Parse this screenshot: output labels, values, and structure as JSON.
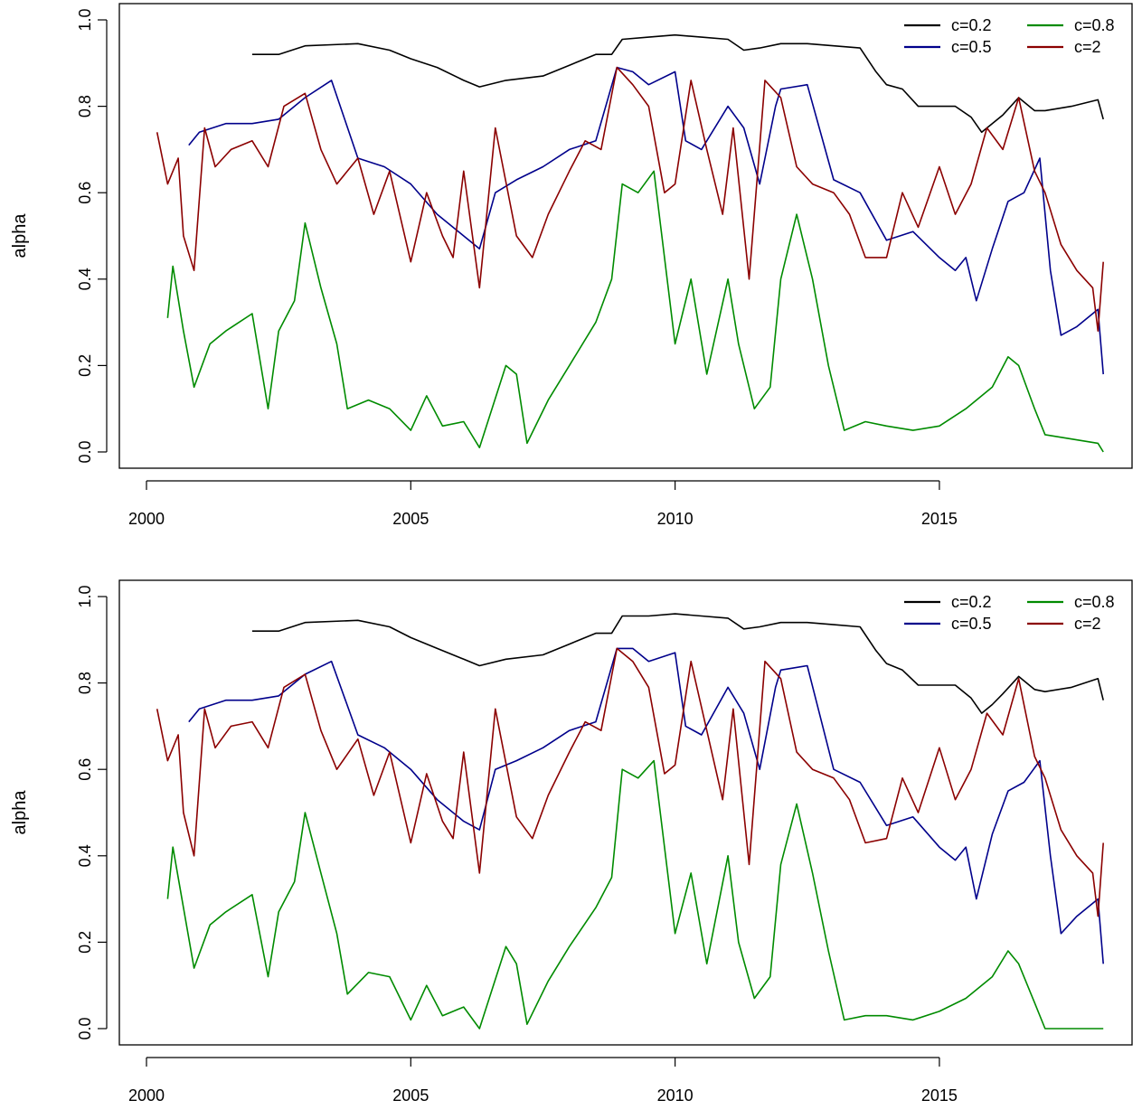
{
  "chart_data": [
    {
      "type": "line",
      "title": "",
      "xlabel": "",
      "ylabel": "alpha",
      "xlim": [
        2000,
        2018.2
      ],
      "ylim": [
        0,
        1
      ],
      "x_ticks": [
        "2000",
        "2005",
        "2010",
        "2015"
      ],
      "y_ticks": [
        "0.0",
        "0.2",
        "0.4",
        "0.6",
        "0.8",
        "1.0"
      ],
      "grid": false,
      "legend_position": "top-right",
      "series": [
        {
          "name": "c=0.2",
          "color": "#000000",
          "x": [
            2002.0,
            2002.5,
            2003.0,
            2004.0,
            2004.6,
            2005.0,
            2005.5,
            2006.0,
            2006.3,
            2006.8,
            2007.5,
            2008.0,
            2008.5,
            2008.8,
            2009.0,
            2009.5,
            2010.0,
            2010.5,
            2011.0,
            2011.3,
            2011.6,
            2012.0,
            2012.5,
            2013.0,
            2013.5,
            2013.8,
            2014.0,
            2014.3,
            2014.6,
            2015.0,
            2015.3,
            2015.6,
            2015.8,
            2016.0,
            2016.2,
            2016.5,
            2016.8,
            2017.0,
            2017.5,
            2018.0,
            2018.1
          ],
          "values": [
            0.92,
            0.92,
            0.94,
            0.945,
            0.93,
            0.91,
            0.89,
            0.86,
            0.845,
            0.86,
            0.87,
            0.895,
            0.92,
            0.92,
            0.955,
            0.96,
            0.965,
            0.96,
            0.955,
            0.93,
            0.935,
            0.945,
            0.945,
            0.94,
            0.935,
            0.88,
            0.85,
            0.84,
            0.8,
            0.8,
            0.8,
            0.775,
            0.74,
            0.76,
            0.78,
            0.82,
            0.79,
            0.79,
            0.8,
            0.815,
            0.77
          ]
        },
        {
          "name": "c=0.5",
          "color": "#00008b",
          "x": [
            2000.8,
            2001.0,
            2001.5,
            2002.0,
            2002.5,
            2003.0,
            2003.5,
            2004.0,
            2004.5,
            2005.0,
            2005.5,
            2006.0,
            2006.3,
            2006.6,
            2007.0,
            2007.5,
            2008.0,
            2008.5,
            2008.9,
            2009.2,
            2009.5,
            2010.0,
            2010.2,
            2010.5,
            2011.0,
            2011.3,
            2011.6,
            2011.9,
            2012.0,
            2012.5,
            2013.0,
            2013.5,
            2014.0,
            2014.5,
            2015.0,
            2015.3,
            2015.5,
            2015.7,
            2016.0,
            2016.3,
            2016.6,
            2016.9,
            2017.1,
            2017.3,
            2017.6,
            2018.0,
            2018.1
          ],
          "values": [
            0.71,
            0.74,
            0.76,
            0.76,
            0.77,
            0.82,
            0.86,
            0.68,
            0.66,
            0.62,
            0.55,
            0.5,
            0.47,
            0.6,
            0.63,
            0.66,
            0.7,
            0.72,
            0.89,
            0.88,
            0.85,
            0.88,
            0.72,
            0.7,
            0.8,
            0.75,
            0.62,
            0.8,
            0.84,
            0.85,
            0.63,
            0.6,
            0.49,
            0.51,
            0.45,
            0.42,
            0.45,
            0.35,
            0.47,
            0.58,
            0.6,
            0.68,
            0.42,
            0.27,
            0.29,
            0.33,
            0.18
          ]
        },
        {
          "name": "c=0.8",
          "color": "#008b00",
          "x": [
            2000.4,
            2000.5,
            2000.7,
            2000.9,
            2001.2,
            2001.5,
            2002.0,
            2002.3,
            2002.5,
            2002.8,
            2003.0,
            2003.3,
            2003.6,
            2003.8,
            2004.2,
            2004.6,
            2005.0,
            2005.3,
            2005.6,
            2006.0,
            2006.3,
            2006.8,
            2007.0,
            2007.2,
            2007.6,
            2008.0,
            2008.5,
            2008.8,
            2009.0,
            2009.3,
            2009.6,
            2010.0,
            2010.3,
            2010.6,
            2011.0,
            2011.2,
            2011.5,
            2011.8,
            2012.0,
            2012.3,
            2012.6,
            2012.9,
            2013.2,
            2013.6,
            2014.0,
            2014.5,
            2015.0,
            2015.5,
            2016.0,
            2016.3,
            2016.5,
            2016.8,
            2017.0,
            2017.5,
            2018.0,
            2018.1
          ],
          "values": [
            0.31,
            0.43,
            0.28,
            0.15,
            0.25,
            0.28,
            0.32,
            0.1,
            0.28,
            0.35,
            0.53,
            0.38,
            0.25,
            0.1,
            0.12,
            0.1,
            0.05,
            0.13,
            0.06,
            0.07,
            0.01,
            0.2,
            0.18,
            0.02,
            0.12,
            0.2,
            0.3,
            0.4,
            0.62,
            0.6,
            0.65,
            0.25,
            0.4,
            0.18,
            0.4,
            0.25,
            0.1,
            0.15,
            0.4,
            0.55,
            0.4,
            0.2,
            0.05,
            0.07,
            0.06,
            0.05,
            0.06,
            0.1,
            0.15,
            0.22,
            0.2,
            0.1,
            0.04,
            0.03,
            0.02,
            0.0
          ]
        },
        {
          "name": "c=2",
          "color": "#8b0000",
          "x": [
            2000.2,
            2000.4,
            2000.6,
            2000.7,
            2000.9,
            2001.1,
            2001.3,
            2001.6,
            2002.0,
            2002.3,
            2002.6,
            2003.0,
            2003.3,
            2003.6,
            2004.0,
            2004.3,
            2004.6,
            2005.0,
            2005.3,
            2005.6,
            2005.8,
            2006.0,
            2006.3,
            2006.6,
            2007.0,
            2007.3,
            2007.6,
            2008.0,
            2008.3,
            2008.6,
            2008.9,
            2009.2,
            2009.5,
            2009.8,
            2010.0,
            2010.3,
            2010.6,
            2010.9,
            2011.1,
            2011.4,
            2011.7,
            2012.0,
            2012.3,
            2012.6,
            2013.0,
            2013.3,
            2013.6,
            2014.0,
            2014.3,
            2014.6,
            2015.0,
            2015.3,
            2015.6,
            2015.9,
            2016.2,
            2016.5,
            2016.8,
            2017.0,
            2017.3,
            2017.6,
            2017.9,
            2018.0,
            2018.1
          ],
          "values": [
            0.74,
            0.62,
            0.68,
            0.5,
            0.42,
            0.75,
            0.66,
            0.7,
            0.72,
            0.66,
            0.8,
            0.83,
            0.7,
            0.62,
            0.68,
            0.55,
            0.65,
            0.44,
            0.6,
            0.5,
            0.45,
            0.65,
            0.38,
            0.75,
            0.5,
            0.45,
            0.55,
            0.65,
            0.72,
            0.7,
            0.89,
            0.85,
            0.8,
            0.6,
            0.62,
            0.86,
            0.7,
            0.55,
            0.75,
            0.4,
            0.86,
            0.82,
            0.66,
            0.62,
            0.6,
            0.55,
            0.45,
            0.45,
            0.6,
            0.52,
            0.66,
            0.55,
            0.62,
            0.75,
            0.7,
            0.82,
            0.65,
            0.6,
            0.48,
            0.42,
            0.38,
            0.28,
            0.44
          ]
        }
      ]
    },
    {
      "type": "line",
      "title": "",
      "xlabel": "",
      "ylabel": "alpha",
      "xlim": [
        2000,
        2018.2
      ],
      "ylim": [
        0,
        1
      ],
      "x_ticks": [
        "2000",
        "2005",
        "2010",
        "2015"
      ],
      "y_ticks": [
        "0.0",
        "0.2",
        "0.4",
        "0.6",
        "0.8",
        "1.0"
      ],
      "grid": false,
      "legend_position": "top-right",
      "series": [
        {
          "name": "c=0.2",
          "color": "#000000",
          "x": [
            2002.0,
            2002.5,
            2003.0,
            2004.0,
            2004.6,
            2005.0,
            2005.5,
            2006.0,
            2006.3,
            2006.8,
            2007.5,
            2008.0,
            2008.5,
            2008.8,
            2009.0,
            2009.5,
            2010.0,
            2010.5,
            2011.0,
            2011.3,
            2011.6,
            2012.0,
            2012.5,
            2013.0,
            2013.5,
            2013.8,
            2014.0,
            2014.3,
            2014.6,
            2015.0,
            2015.3,
            2015.6,
            2015.8,
            2016.0,
            2016.2,
            2016.5,
            2016.8,
            2017.0,
            2017.5,
            2018.0,
            2018.1
          ],
          "values": [
            0.92,
            0.92,
            0.94,
            0.945,
            0.93,
            0.905,
            0.88,
            0.855,
            0.84,
            0.855,
            0.865,
            0.89,
            0.915,
            0.915,
            0.955,
            0.955,
            0.96,
            0.955,
            0.95,
            0.925,
            0.93,
            0.94,
            0.94,
            0.935,
            0.93,
            0.875,
            0.845,
            0.83,
            0.795,
            0.795,
            0.795,
            0.765,
            0.73,
            0.75,
            0.775,
            0.815,
            0.785,
            0.78,
            0.79,
            0.81,
            0.76
          ]
        },
        {
          "name": "c=0.5",
          "color": "#00008b",
          "x": [
            2000.8,
            2001.0,
            2001.5,
            2002.0,
            2002.5,
            2003.0,
            2003.5,
            2004.0,
            2004.5,
            2005.0,
            2005.5,
            2006.0,
            2006.3,
            2006.6,
            2007.0,
            2007.5,
            2008.0,
            2008.5,
            2008.9,
            2009.2,
            2009.5,
            2010.0,
            2010.2,
            2010.5,
            2011.0,
            2011.3,
            2011.6,
            2011.9,
            2012.0,
            2012.5,
            2013.0,
            2013.5,
            2014.0,
            2014.5,
            2015.0,
            2015.3,
            2015.5,
            2015.7,
            2016.0,
            2016.3,
            2016.6,
            2016.9,
            2017.1,
            2017.3,
            2017.6,
            2018.0,
            2018.1
          ],
          "values": [
            0.71,
            0.74,
            0.76,
            0.76,
            0.77,
            0.82,
            0.85,
            0.68,
            0.65,
            0.6,
            0.53,
            0.48,
            0.46,
            0.6,
            0.62,
            0.65,
            0.69,
            0.71,
            0.88,
            0.88,
            0.85,
            0.87,
            0.7,
            0.68,
            0.79,
            0.73,
            0.6,
            0.79,
            0.83,
            0.84,
            0.6,
            0.57,
            0.47,
            0.49,
            0.42,
            0.39,
            0.42,
            0.3,
            0.45,
            0.55,
            0.57,
            0.62,
            0.4,
            0.22,
            0.26,
            0.3,
            0.15
          ]
        },
        {
          "name": "c=0.8",
          "color": "#008b00",
          "x": [
            2000.4,
            2000.5,
            2000.7,
            2000.9,
            2001.2,
            2001.5,
            2002.0,
            2002.3,
            2002.5,
            2002.8,
            2003.0,
            2003.3,
            2003.6,
            2003.8,
            2004.2,
            2004.6,
            2005.0,
            2005.3,
            2005.6,
            2006.0,
            2006.3,
            2006.8,
            2007.0,
            2007.2,
            2007.6,
            2008.0,
            2008.5,
            2008.8,
            2009.0,
            2009.3,
            2009.6,
            2010.0,
            2010.3,
            2010.6,
            2011.0,
            2011.2,
            2011.5,
            2011.8,
            2012.0,
            2012.3,
            2012.6,
            2012.9,
            2013.2,
            2013.6,
            2014.0,
            2014.5,
            2015.0,
            2015.5,
            2016.0,
            2016.3,
            2016.5,
            2016.8,
            2017.0,
            2017.3,
            2017.6,
            2018.0,
            2018.1
          ],
          "values": [
            0.3,
            0.42,
            0.28,
            0.14,
            0.24,
            0.27,
            0.31,
            0.12,
            0.27,
            0.34,
            0.5,
            0.36,
            0.22,
            0.08,
            0.13,
            0.12,
            0.02,
            0.1,
            0.03,
            0.05,
            0.0,
            0.19,
            0.15,
            0.01,
            0.11,
            0.19,
            0.28,
            0.35,
            0.6,
            0.58,
            0.62,
            0.22,
            0.36,
            0.15,
            0.4,
            0.2,
            0.07,
            0.12,
            0.38,
            0.52,
            0.36,
            0.18,
            0.02,
            0.03,
            0.03,
            0.02,
            0.04,
            0.07,
            0.12,
            0.18,
            0.15,
            0.06,
            0.0,
            0.0,
            0.0,
            0.0,
            0.0
          ]
        },
        {
          "name": "c=2",
          "color": "#8b0000",
          "x": [
            2000.2,
            2000.4,
            2000.6,
            2000.7,
            2000.9,
            2001.1,
            2001.3,
            2001.6,
            2002.0,
            2002.3,
            2002.6,
            2003.0,
            2003.3,
            2003.6,
            2004.0,
            2004.3,
            2004.6,
            2005.0,
            2005.3,
            2005.6,
            2005.8,
            2006.0,
            2006.3,
            2006.6,
            2007.0,
            2007.3,
            2007.6,
            2008.0,
            2008.3,
            2008.6,
            2008.9,
            2009.2,
            2009.5,
            2009.8,
            2010.0,
            2010.3,
            2010.6,
            2010.9,
            2011.1,
            2011.4,
            2011.7,
            2012.0,
            2012.3,
            2012.6,
            2013.0,
            2013.3,
            2013.6,
            2014.0,
            2014.3,
            2014.6,
            2015.0,
            2015.3,
            2015.6,
            2015.9,
            2016.2,
            2016.5,
            2016.8,
            2017.0,
            2017.3,
            2017.6,
            2017.9,
            2018.0,
            2018.1
          ],
          "values": [
            0.74,
            0.62,
            0.68,
            0.5,
            0.4,
            0.74,
            0.65,
            0.7,
            0.71,
            0.65,
            0.79,
            0.82,
            0.69,
            0.6,
            0.67,
            0.54,
            0.64,
            0.43,
            0.59,
            0.48,
            0.44,
            0.64,
            0.36,
            0.74,
            0.49,
            0.44,
            0.54,
            0.64,
            0.71,
            0.69,
            0.88,
            0.85,
            0.79,
            0.59,
            0.61,
            0.85,
            0.69,
            0.53,
            0.74,
            0.38,
            0.85,
            0.81,
            0.64,
            0.6,
            0.58,
            0.53,
            0.43,
            0.44,
            0.58,
            0.5,
            0.65,
            0.53,
            0.6,
            0.73,
            0.68,
            0.81,
            0.63,
            0.58,
            0.46,
            0.4,
            0.36,
            0.26,
            0.43
          ]
        }
      ]
    }
  ]
}
